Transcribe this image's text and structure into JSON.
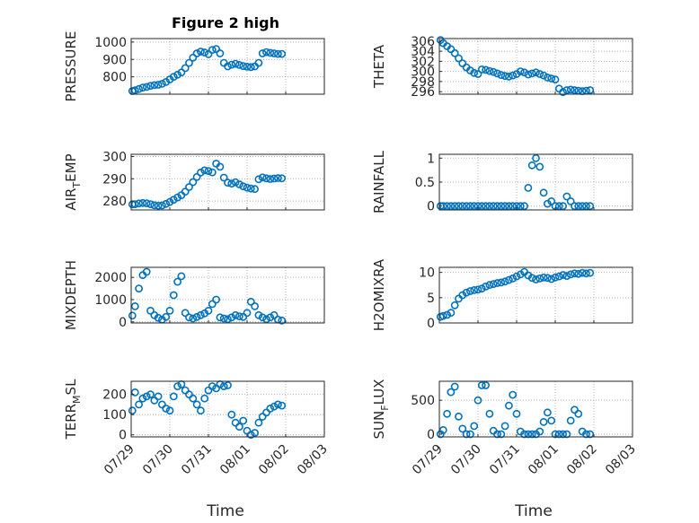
{
  "figure": {
    "title": "Figure 2 high",
    "xlabel": "Time"
  },
  "chart_data": [
    {
      "type": "scatter",
      "title": "Figure 2 high",
      "ylabel_main": "PRESSURE",
      "ylabel_sub": "",
      "ylim": [
        700,
        1020
      ],
      "yticks": [
        800,
        900,
        1000
      ],
      "xlim": [
        0,
        5
      ],
      "xticks": [
        "07/29",
        "07/30",
        "07/31",
        "08/01",
        "08/02",
        "08/03"
      ],
      "show_xticklabels": false,
      "color": "#0072BD",
      "x": [
        0.03,
        0.1,
        0.2,
        0.3,
        0.4,
        0.5,
        0.6,
        0.7,
        0.8,
        0.9,
        1.0,
        1.1,
        1.2,
        1.3,
        1.4,
        1.5,
        1.6,
        1.7,
        1.8,
        1.9,
        2.0,
        2.1,
        2.2,
        2.3,
        2.4,
        2.5,
        2.6,
        2.7,
        2.8,
        2.9,
        3.0,
        3.1,
        3.2,
        3.3,
        3.4,
        3.5,
        3.6,
        3.7,
        3.8,
        3.9
      ],
      "y": [
        718,
        722,
        730,
        738,
        742,
        748,
        752,
        754,
        760,
        770,
        785,
        800,
        812,
        825,
        850,
        880,
        910,
        935,
        945,
        940,
        930,
        955,
        960,
        935,
        880,
        860,
        870,
        875,
        868,
        862,
        858,
        856,
        860,
        880,
        935,
        942,
        938,
        935,
        932,
        932
      ]
    },
    {
      "type": "scatter",
      "title": "",
      "ylabel_main": "THETA",
      "ylabel_sub": "",
      "ylim": [
        295.5,
        306.5
      ],
      "yticks": [
        296,
        298,
        300,
        302,
        304,
        306
      ],
      "xlim": [
        0,
        5
      ],
      "xticks": [
        "07/29",
        "07/30",
        "07/31",
        "08/01",
        "08/02",
        "08/03"
      ],
      "show_xticklabels": false,
      "color": "#0072BD",
      "x": [
        0.03,
        0.1,
        0.2,
        0.3,
        0.4,
        0.5,
        0.6,
        0.7,
        0.8,
        0.9,
        1.0,
        1.1,
        1.2,
        1.3,
        1.4,
        1.5,
        1.6,
        1.7,
        1.8,
        1.9,
        2.0,
        2.1,
        2.2,
        2.3,
        2.4,
        2.5,
        2.6,
        2.7,
        2.8,
        2.9,
        3.0,
        3.1,
        3.2,
        3.3,
        3.4,
        3.5,
        3.6,
        3.7,
        3.8,
        3.9
      ],
      "y": [
        306.2,
        305.6,
        305.0,
        304.4,
        303.6,
        302.6,
        301.6,
        300.8,
        300.2,
        299.7,
        299.5,
        300.4,
        300.3,
        300.1,
        299.9,
        299.6,
        299.3,
        299.1,
        299.0,
        299.2,
        299.5,
        300.0,
        299.8,
        299.4,
        299.6,
        299.8,
        299.5,
        299.2,
        298.8,
        298.6,
        298.4,
        296.6,
        295.9,
        296.3,
        296.4,
        296.3,
        296.2,
        296.1,
        296.2,
        296.3
      ]
    },
    {
      "type": "scatter",
      "title": "",
      "ylabel_main": "AIR",
      "ylabel_sub": "T",
      "ylabel_rest": "EMP",
      "ylim": [
        276,
        301
      ],
      "yticks": [
        280,
        290,
        300
      ],
      "xlim": [
        0,
        5
      ],
      "xticks": [
        "07/29",
        "07/30",
        "07/31",
        "08/01",
        "08/02",
        "08/03"
      ],
      "show_xticklabels": false,
      "color": "#0072BD",
      "x": [
        0.03,
        0.1,
        0.2,
        0.3,
        0.4,
        0.5,
        0.6,
        0.7,
        0.8,
        0.9,
        1.0,
        1.1,
        1.2,
        1.3,
        1.4,
        1.5,
        1.6,
        1.7,
        1.8,
        1.9,
        2.0,
        2.1,
        2.2,
        2.3,
        2.4,
        2.5,
        2.6,
        2.7,
        2.8,
        2.9,
        3.0,
        3.1,
        3.2,
        3.3,
        3.4,
        3.5,
        3.6,
        3.7,
        3.8,
        3.9
      ],
      "y": [
        278.5,
        278.6,
        278.9,
        279.1,
        279.0,
        278.6,
        278.1,
        277.9,
        278.0,
        278.7,
        279.6,
        280.6,
        281.6,
        282.6,
        284.2,
        286.3,
        288.5,
        290.8,
        292.8,
        293.8,
        293.5,
        292.9,
        296.8,
        295.4,
        290.5,
        288.2,
        287.8,
        288.4,
        287.5,
        286.6,
        286.0,
        285.6,
        285.4,
        289.8,
        290.6,
        290.2,
        289.9,
        290.1,
        290.3,
        290.2
      ]
    },
    {
      "type": "scatter",
      "title": "",
      "ylabel_main": "RAINFALL",
      "ylabel_sub": "",
      "ylim": [
        -0.08,
        1.08
      ],
      "yticks": [
        0,
        0.5,
        1
      ],
      "xlim": [
        0,
        5
      ],
      "xticks": [
        "07/29",
        "07/30",
        "07/31",
        "08/01",
        "08/02",
        "08/03"
      ],
      "show_xticklabels": false,
      "color": "#0072BD",
      "x": [
        0.03,
        0.1,
        0.2,
        0.3,
        0.4,
        0.5,
        0.6,
        0.7,
        0.8,
        0.9,
        1.0,
        1.1,
        1.2,
        1.3,
        1.4,
        1.5,
        1.6,
        1.7,
        1.8,
        1.9,
        2.0,
        2.1,
        2.2,
        2.3,
        2.4,
        2.5,
        2.6,
        2.7,
        2.8,
        2.9,
        3.0,
        3.1,
        3.2,
        3.3,
        3.4,
        3.5,
        3.6,
        3.7,
        3.8,
        3.9
      ],
      "y": [
        0,
        0,
        0,
        0,
        0,
        0,
        0,
        0,
        0,
        0,
        0,
        0,
        0,
        0,
        0,
        0,
        0,
        0,
        0,
        0,
        0,
        0,
        0,
        0.38,
        0.85,
        1.0,
        0.82,
        0.28,
        0.05,
        0.1,
        0,
        0,
        0,
        0.2,
        0.1,
        0,
        0,
        0,
        0,
        0
      ]
    },
    {
      "type": "scatter",
      "title": "",
      "ylabel_main": "MIXDEPTH",
      "ylabel_sub": "",
      "ylim": [
        -50,
        2450
      ],
      "yticks": [
        0,
        1000,
        2000
      ],
      "xlim": [
        0,
        5
      ],
      "xticks": [
        "07/29",
        "07/30",
        "07/31",
        "08/01",
        "08/02",
        "08/03"
      ],
      "show_xticklabels": false,
      "color": "#0072BD",
      "x": [
        0.03,
        0.1,
        0.2,
        0.3,
        0.4,
        0.5,
        0.6,
        0.7,
        0.8,
        0.9,
        1.0,
        1.1,
        1.2,
        1.3,
        1.4,
        1.5,
        1.6,
        1.7,
        1.8,
        1.9,
        2.0,
        2.1,
        2.2,
        2.3,
        2.4,
        2.5,
        2.6,
        2.7,
        2.8,
        2.9,
        3.0,
        3.1,
        3.2,
        3.3,
        3.4,
        3.5,
        3.6,
        3.7,
        3.8,
        3.9
      ],
      "y": [
        280,
        700,
        1500,
        2100,
        2250,
        500,
        300,
        180,
        100,
        220,
        500,
        1200,
        1800,
        2050,
        400,
        200,
        150,
        220,
        300,
        380,
        500,
        800,
        1000,
        200,
        150,
        120,
        200,
        300,
        250,
        220,
        400,
        900,
        700,
        300,
        200,
        120,
        200,
        300,
        100,
        60
      ]
    },
    {
      "type": "scatter",
      "title": "",
      "ylabel_main": "H2OMIXRA",
      "ylabel_sub": "",
      "ylim": [
        0,
        11
      ],
      "yticks": [
        0,
        5,
        10
      ],
      "xlim": [
        0,
        5
      ],
      "xticks": [
        "07/29",
        "07/30",
        "07/31",
        "08/01",
        "08/02",
        "08/03"
      ],
      "show_xticklabels": false,
      "color": "#0072BD",
      "x": [
        0.03,
        0.1,
        0.2,
        0.3,
        0.4,
        0.5,
        0.6,
        0.7,
        0.8,
        0.9,
        1.0,
        1.1,
        1.2,
        1.3,
        1.4,
        1.5,
        1.6,
        1.7,
        1.8,
        1.9,
        2.0,
        2.1,
        2.2,
        2.3,
        2.4,
        2.5,
        2.6,
        2.7,
        2.8,
        2.9,
        3.0,
        3.1,
        3.2,
        3.3,
        3.4,
        3.5,
        3.6,
        3.7,
        3.8,
        3.9
      ],
      "y": [
        1.2,
        1.4,
        1.6,
        2.0,
        3.5,
        4.8,
        5.5,
        6.0,
        6.3,
        6.5,
        6.6,
        6.8,
        7.2,
        7.5,
        7.7,
        7.9,
        8.0,
        8.2,
        8.5,
        8.8,
        9.2,
        9.6,
        10.1,
        9.4,
        8.9,
        8.6,
        8.8,
        9.0,
        8.9,
        8.7,
        9.0,
        9.2,
        9.5,
        9.3,
        9.6,
        9.8,
        9.7,
        9.9,
        9.8,
        9.9
      ]
    },
    {
      "type": "scatter",
      "title": "",
      "ylabel_main": "TERR",
      "ylabel_sub": "M",
      "ylabel_rest": "SL",
      "ylim": [
        -10,
        265
      ],
      "yticks": [
        0,
        100,
        200
      ],
      "xlim": [
        0,
        5
      ],
      "xticks": [
        "07/29",
        "07/30",
        "07/31",
        "08/01",
        "08/02",
        "08/03"
      ],
      "show_xticklabels": true,
      "color": "#0072BD",
      "x": [
        0.03,
        0.1,
        0.2,
        0.3,
        0.4,
        0.5,
        0.6,
        0.7,
        0.8,
        0.9,
        1.0,
        1.1,
        1.2,
        1.3,
        1.4,
        1.5,
        1.6,
        1.7,
        1.8,
        1.9,
        2.0,
        2.1,
        2.2,
        2.3,
        2.4,
        2.5,
        2.6,
        2.7,
        2.8,
        2.9,
        3.0,
        3.1,
        3.2,
        3.3,
        3.4,
        3.5,
        3.6,
        3.7,
        3.8,
        3.9
      ],
      "y": [
        120,
        210,
        150,
        180,
        190,
        200,
        170,
        190,
        150,
        130,
        120,
        190,
        240,
        250,
        220,
        200,
        180,
        150,
        120,
        180,
        220,
        240,
        230,
        250,
        240,
        245,
        100,
        60,
        40,
        70,
        20,
        0,
        10,
        60,
        90,
        110,
        130,
        140,
        150,
        145
      ]
    },
    {
      "type": "scatter",
      "title": "",
      "ylabel_main": "SUN",
      "ylabel_sub": "F",
      "ylabel_rest": "LUX",
      "ylim": [
        -40,
        780
      ],
      "yticks": [
        0,
        500
      ],
      "xlim": [
        0,
        5
      ],
      "xticks": [
        "07/29",
        "07/30",
        "07/31",
        "08/01",
        "08/02",
        "08/03"
      ],
      "show_xticklabels": true,
      "color": "#0072BD",
      "x": [
        0.03,
        0.1,
        0.2,
        0.3,
        0.4,
        0.5,
        0.6,
        0.7,
        0.8,
        0.9,
        1.0,
        1.1,
        1.2,
        1.3,
        1.4,
        1.5,
        1.6,
        1.7,
        1.8,
        1.9,
        2.0,
        2.1,
        2.2,
        2.3,
        2.4,
        2.5,
        2.6,
        2.7,
        2.8,
        2.9,
        3.0,
        3.1,
        3.2,
        3.3,
        3.4,
        3.5,
        3.6,
        3.7,
        3.8,
        3.9
      ],
      "y": [
        0,
        60,
        300,
        620,
        700,
        260,
        80,
        0,
        0,
        120,
        500,
        720,
        720,
        300,
        50,
        0,
        0,
        120,
        420,
        580,
        300,
        40,
        0,
        0,
        0,
        0,
        40,
        180,
        320,
        200,
        0,
        0,
        0,
        0,
        200,
        360,
        300,
        40,
        0,
        0
      ]
    }
  ]
}
